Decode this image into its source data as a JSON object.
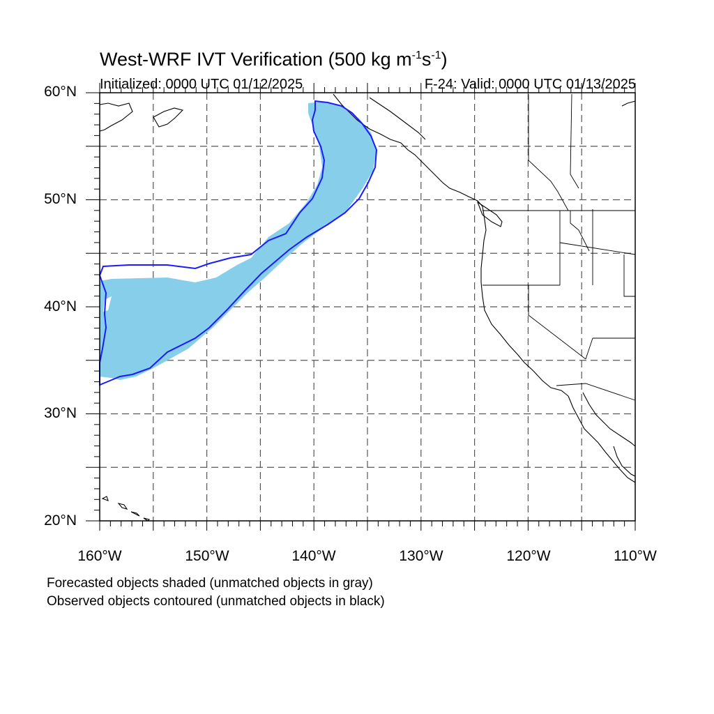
{
  "title": {
    "main": "West-WRF IVT Verification (500 kg m",
    "exp1": "-1",
    "mid": "s",
    "exp2": "-1",
    "end": ")"
  },
  "subtitle": {
    "initialized": "Initialized: 0000 UTC 01/12/2025",
    "valid": "F-24: Valid: 0000 UTC 01/13/2025"
  },
  "axes": {
    "lat_labels": [
      "60°N",
      "50°N",
      "40°N",
      "30°N",
      "20°N"
    ],
    "lon_labels": [
      "160°W",
      "150°W",
      "140°W",
      "130°W",
      "120°W",
      "110°W"
    ],
    "lat_range": [
      20,
      60
    ],
    "lon_range": [
      -160,
      -110
    ],
    "grid": "dashed every 5 degrees"
  },
  "legend": {
    "line1": "Forecasted objects shaded (unmatched objects in gray)",
    "line2": "Observed objects contoured (unmatched objects in black)"
  },
  "colors": {
    "forecast_fill": "#87ceeb",
    "observed_contour": "#1a1aff",
    "coastline": "#000000",
    "grid": "#555555"
  }
}
